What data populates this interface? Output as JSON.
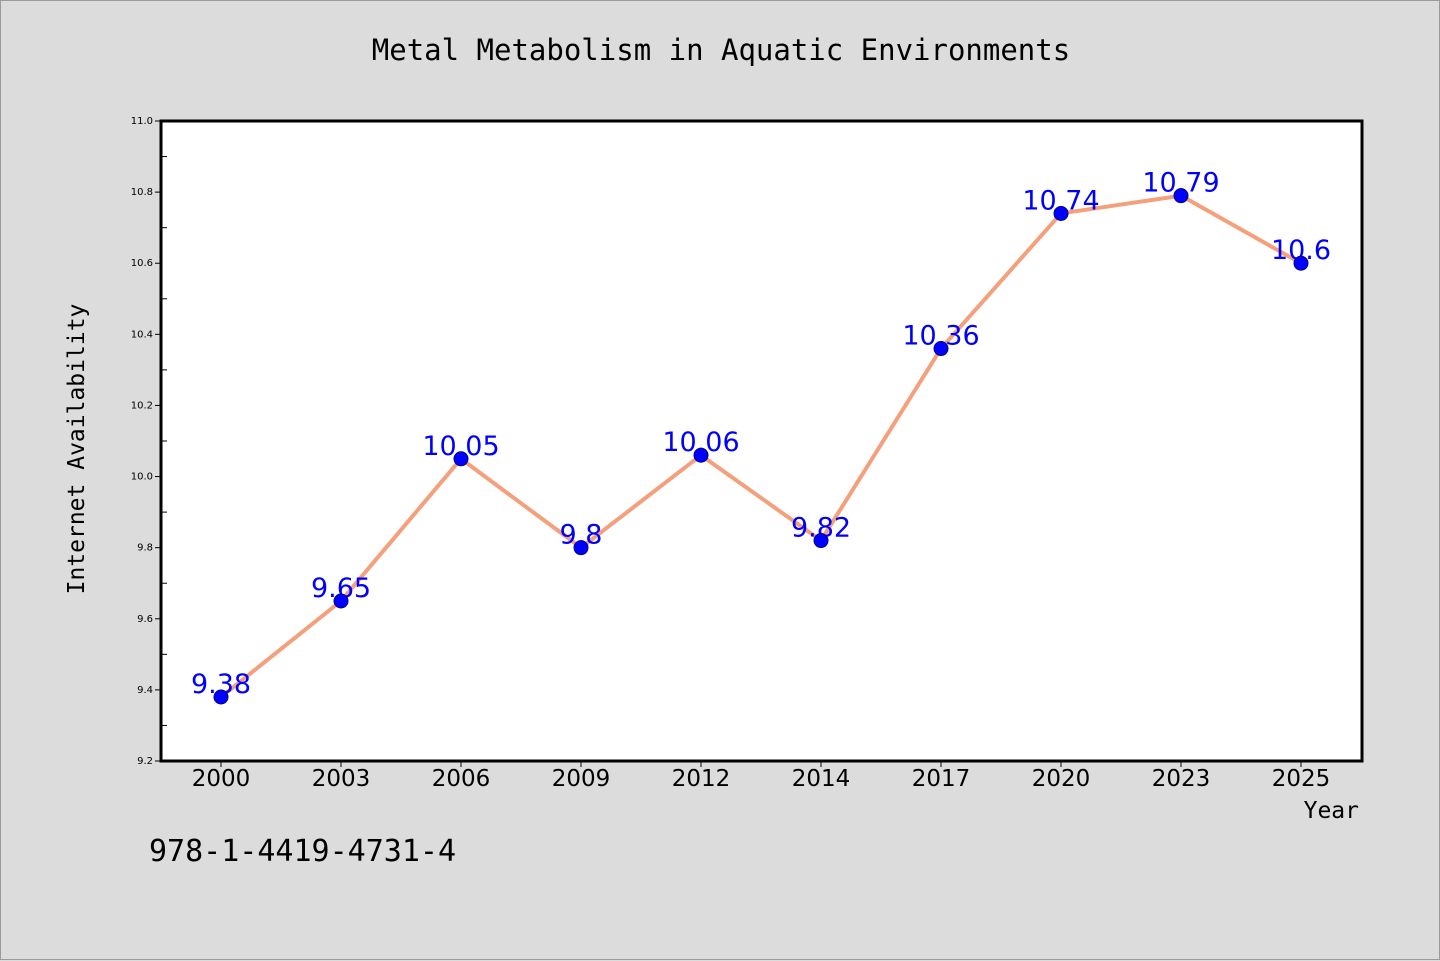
{
  "chart_data": {
    "type": "line",
    "title": "Metal Metabolism in Aquatic Environments",
    "xlabel": "Year",
    "ylabel": "Internet Availability",
    "categories": [
      "2000",
      "2003",
      "2006",
      "2009",
      "2012",
      "2014",
      "2017",
      "2020",
      "2023",
      "2025"
    ],
    "series": [
      {
        "values": [
          9.38,
          9.65,
          10.05,
          9.8,
          10.06,
          9.82,
          10.36,
          10.74,
          10.79,
          10.6
        ],
        "data_labels": [
          "9.38",
          "9.65",
          "10.05",
          "9.8",
          "10.06",
          "9.82",
          "10.36",
          "10.74",
          "10.79",
          "10.6"
        ],
        "line_color": "#f4a07c",
        "marker_color": "#0000ff"
      }
    ],
    "ylim": [
      9.2,
      11.0
    ],
    "yticks": [
      9.2,
      9.4,
      9.6,
      9.8,
      10.0,
      10.2,
      10.4,
      10.6,
      10.8,
      11.0
    ],
    "ytick_labels": [
      "9.2",
      "9.4",
      "9.6",
      "9.8",
      "10.0",
      "10.2",
      "10.4",
      "10.6",
      "10.8",
      "11.0"
    ],
    "grid": false,
    "legend": false
  },
  "footer_text": "978-1-4419-4731-4",
  "colors": {
    "figure_background": "#dcdcdc",
    "plot_background": "#ffffff",
    "line": "#f4a07c",
    "marker": "#0000ff",
    "data_label": "#0000ff"
  }
}
